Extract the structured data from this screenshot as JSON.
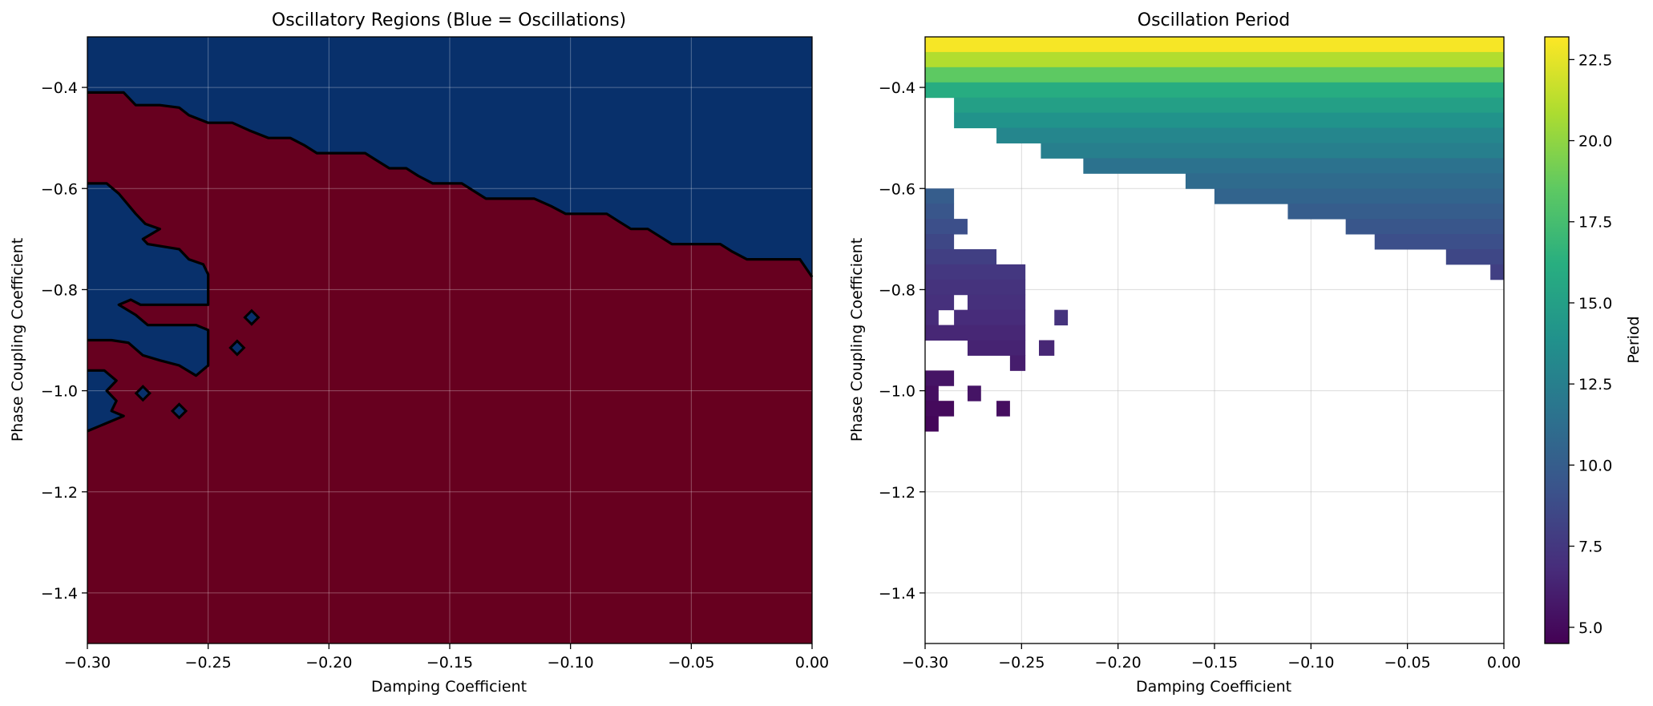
{
  "chart_data": [
    {
      "type": "heatmap",
      "title": "Oscillatory Regions (Blue = Oscillations)",
      "xlabel": "Damping Coefficient",
      "ylabel": "Phase Coupling Coefficient",
      "xlim": [
        -0.3,
        0.0
      ],
      "ylim": [
        -1.5,
        -0.3
      ],
      "xticks": [
        "−0.30",
        "−0.25",
        "−0.20",
        "−0.15",
        "−0.10",
        "−0.05",
        "0.00"
      ],
      "yticks": [
        "−0.4",
        "−0.6",
        "−0.8",
        "−1.0",
        "−1.2",
        "−1.4"
      ],
      "grid": true,
      "colors": {
        "oscillating": "#08306b",
        "non_oscillating": "#67001f",
        "boundary": "#000000"
      },
      "boundary_upper": [
        [
          -0.3,
          -0.41
        ],
        [
          -0.285,
          -0.41
        ],
        [
          -0.28,
          -0.435
        ],
        [
          -0.27,
          -0.435
        ],
        [
          -0.262,
          -0.44
        ],
        [
          -0.258,
          -0.455
        ],
        [
          -0.25,
          -0.47
        ],
        [
          -0.24,
          -0.47
        ],
        [
          -0.233,
          -0.485
        ],
        [
          -0.225,
          -0.5
        ],
        [
          -0.216,
          -0.5
        ],
        [
          -0.21,
          -0.515
        ],
        [
          -0.205,
          -0.53
        ],
        [
          -0.192,
          -0.53
        ],
        [
          -0.185,
          -0.53
        ],
        [
          -0.18,
          -0.545
        ],
        [
          -0.175,
          -0.56
        ],
        [
          -0.168,
          -0.56
        ],
        [
          -0.163,
          -0.575
        ],
        [
          -0.157,
          -0.59
        ],
        [
          -0.145,
          -0.59
        ],
        [
          -0.14,
          -0.605
        ],
        [
          -0.135,
          -0.62
        ],
        [
          -0.115,
          -0.62
        ],
        [
          -0.108,
          -0.635
        ],
        [
          -0.102,
          -0.65
        ],
        [
          -0.085,
          -0.65
        ],
        [
          -0.08,
          -0.665
        ],
        [
          -0.075,
          -0.68
        ],
        [
          -0.068,
          -0.68
        ],
        [
          -0.063,
          -0.695
        ],
        [
          -0.058,
          -0.71
        ],
        [
          -0.038,
          -0.71
        ],
        [
          -0.033,
          -0.725
        ],
        [
          -0.027,
          -0.74
        ],
        [
          -0.005,
          -0.74
        ],
        [
          0.0,
          -0.775
        ]
      ],
      "boundary_left": [
        [
          -0.3,
          -0.59
        ],
        [
          -0.292,
          -0.59
        ],
        [
          -0.287,
          -0.61
        ],
        [
          -0.28,
          -0.65
        ],
        [
          -0.276,
          -0.67
        ],
        [
          -0.27,
          -0.68
        ],
        [
          -0.277,
          -0.7
        ],
        [
          -0.275,
          -0.71
        ],
        [
          -0.262,
          -0.72
        ],
        [
          -0.258,
          -0.74
        ],
        [
          -0.252,
          -0.75
        ],
        [
          -0.25,
          -0.77
        ],
        [
          -0.25,
          -0.83
        ],
        [
          -0.278,
          -0.83
        ],
        [
          -0.282,
          -0.82
        ],
        [
          -0.287,
          -0.83
        ],
        [
          -0.28,
          -0.85
        ],
        [
          -0.275,
          -0.87
        ],
        [
          -0.255,
          -0.87
        ],
        [
          -0.25,
          -0.88
        ],
        [
          -0.25,
          -0.95
        ],
        [
          -0.255,
          -0.97
        ],
        [
          -0.262,
          -0.95
        ],
        [
          -0.27,
          -0.94
        ],
        [
          -0.277,
          -0.93
        ],
        [
          -0.283,
          -0.905
        ],
        [
          -0.29,
          -0.9
        ],
        [
          -0.3,
          -0.9
        ]
      ],
      "boundary_bottom_left": [
        [
          -0.3,
          -0.96
        ],
        [
          -0.293,
          -0.96
        ],
        [
          -0.288,
          -0.98
        ],
        [
          -0.292,
          -1.0
        ],
        [
          -0.288,
          -1.02
        ],
        [
          -0.29,
          -1.04
        ],
        [
          -0.285,
          -1.05
        ],
        [
          -0.3,
          -1.08
        ]
      ],
      "islands": [
        [
          -0.232,
          -0.855
        ],
        [
          -0.238,
          -0.915
        ],
        [
          -0.277,
          -1.005
        ],
        [
          -0.262,
          -1.04
        ]
      ]
    },
    {
      "type": "heatmap",
      "title": "Oscillation Period",
      "xlabel": "Damping Coefficient",
      "ylabel": "Phase Coupling Coefficient",
      "colorbar_label": "Period",
      "colormap": "viridis",
      "vmin": 4.5,
      "vmax": 23.2,
      "colorbar_ticks": [
        "5.0",
        "7.5",
        "10.0",
        "12.5",
        "15.0",
        "17.5",
        "20.0",
        "22.5"
      ],
      "xlim": [
        -0.3,
        0.0
      ],
      "ylim": [
        -1.5,
        -0.3
      ],
      "xticks": [
        "−0.30",
        "−0.25",
        "−0.20",
        "−0.15",
        "−0.10",
        "−0.05",
        "0.00"
      ],
      "yticks": [
        "−0.4",
        "−0.6",
        "−0.8",
        "−1.0",
        "−1.2",
        "−1.4"
      ],
      "grid": true,
      "cell_size": [
        0.0075,
        0.03
      ],
      "upper_region": {
        "rows": [
          {
            "y": -0.315,
            "period": 23.0,
            "x_from": -0.3
          },
          {
            "y": -0.345,
            "period": 21.0,
            "x_from": -0.3
          },
          {
            "y": -0.375,
            "period": 18.5,
            "x_from": -0.3
          },
          {
            "y": -0.405,
            "period": 16.0,
            "x_from": -0.3
          },
          {
            "y": -0.435,
            "period": 15.0,
            "x_from": -0.285
          },
          {
            "y": -0.465,
            "period": 14.0,
            "x_from": -0.285
          },
          {
            "y": -0.495,
            "period": 13.0,
            "x_from": -0.263
          },
          {
            "y": -0.525,
            "period": 12.5,
            "x_from": -0.24
          },
          {
            "y": -0.555,
            "period": 11.5,
            "x_from": -0.218
          },
          {
            "y": -0.585,
            "period": 11.0,
            "x_from": -0.165
          },
          {
            "y": -0.615,
            "period": 10.5,
            "x_from": -0.15
          },
          {
            "y": -0.645,
            "period": 10.0,
            "x_from": -0.112
          },
          {
            "y": -0.675,
            "period": 9.5,
            "x_from": -0.082
          },
          {
            "y": -0.705,
            "period": 9.0,
            "x_from": -0.067
          },
          {
            "y": -0.735,
            "period": 8.5,
            "x_from": -0.03
          },
          {
            "y": -0.765,
            "period": 8.0,
            "x_from": -0.007
          }
        ]
      },
      "lower_cells": [
        {
          "x": [
            -0.3,
            -0.285
          ],
          "y": [
            -0.6,
            -0.63
          ],
          "period": 10.0
        },
        {
          "x": [
            -0.3,
            -0.285
          ],
          "y": [
            -0.63,
            -0.66
          ],
          "period": 9.5
        },
        {
          "x": [
            -0.3,
            -0.278
          ],
          "y": [
            -0.66,
            -0.69
          ],
          "period": 9.0
        },
        {
          "x": [
            -0.3,
            -0.285
          ],
          "y": [
            -0.69,
            -0.72
          ],
          "period": 8.5
        },
        {
          "x": [
            -0.3,
            -0.263
          ],
          "y": [
            -0.72,
            -0.75
          ],
          "period": 8.0
        },
        {
          "x": [
            -0.3,
            -0.248
          ],
          "y": [
            -0.75,
            -0.78
          ],
          "period": 7.5
        },
        {
          "x": [
            -0.3,
            -0.248
          ],
          "y": [
            -0.78,
            -0.81
          ],
          "period": 7.2
        },
        {
          "x": [
            -0.3,
            -0.285
          ],
          "y": [
            -0.81,
            -0.84
          ],
          "period": 7.0
        },
        {
          "x": [
            -0.278,
            -0.248
          ],
          "y": [
            -0.81,
            -0.84
          ],
          "period": 7.0
        },
        {
          "x": [
            -0.3,
            -0.293
          ],
          "y": [
            -0.84,
            -0.87
          ],
          "period": 6.8
        },
        {
          "x": [
            -0.285,
            -0.248
          ],
          "y": [
            -0.84,
            -0.87
          ],
          "period": 6.8
        },
        {
          "x": [
            -0.233,
            -0.226
          ],
          "y": [
            -0.84,
            -0.87
          ],
          "period": 7.2
        },
        {
          "x": [
            -0.3,
            -0.248
          ],
          "y": [
            -0.87,
            -0.9
          ],
          "period": 6.5
        },
        {
          "x": [
            -0.278,
            -0.248
          ],
          "y": [
            -0.9,
            -0.93
          ],
          "period": 6.3
        },
        {
          "x": [
            -0.241,
            -0.233
          ],
          "y": [
            -0.9,
            -0.93
          ],
          "period": 6.5
        },
        {
          "x": [
            -0.256,
            -0.248
          ],
          "y": [
            -0.93,
            -0.96
          ],
          "period": 6.0
        },
        {
          "x": [
            -0.3,
            -0.285
          ],
          "y": [
            -0.96,
            -0.99
          ],
          "period": 5.5
        },
        {
          "x": [
            -0.3,
            -0.293
          ],
          "y": [
            -0.99,
            -1.02
          ],
          "period": 5.2
        },
        {
          "x": [
            -0.278,
            -0.271
          ],
          "y": [
            -0.99,
            -1.02
          ],
          "period": 5.5
        },
        {
          "x": [
            -0.3,
            -0.285
          ],
          "y": [
            -1.02,
            -1.05
          ],
          "period": 5.0
        },
        {
          "x": [
            -0.263,
            -0.256
          ],
          "y": [
            -1.02,
            -1.05
          ],
          "period": 5.2
        },
        {
          "x": [
            -0.3,
            -0.293
          ],
          "y": [
            -1.05,
            -1.08
          ],
          "period": 4.8
        }
      ]
    }
  ]
}
